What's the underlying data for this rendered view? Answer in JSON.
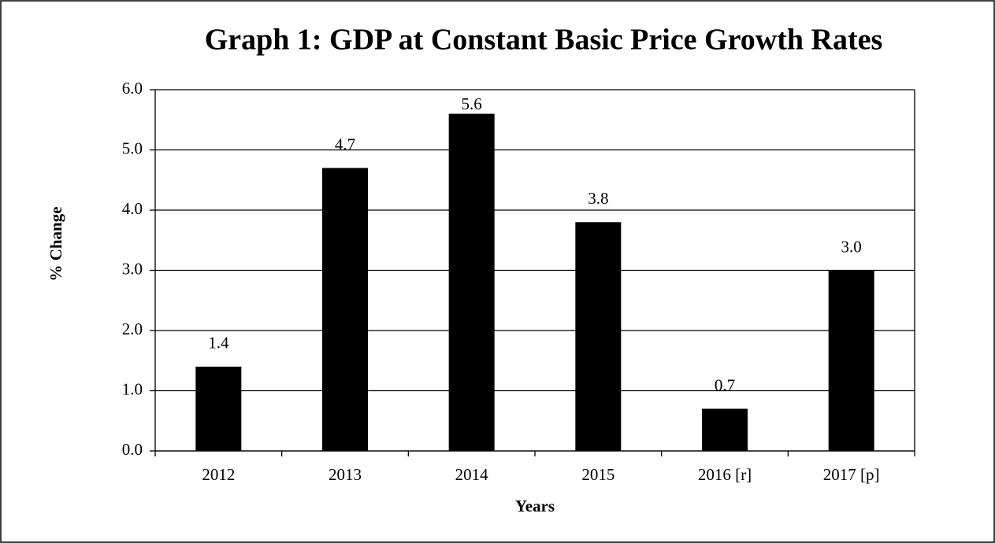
{
  "chart_data": {
    "type": "bar",
    "title": "Graph 1: GDP at Constant Basic Price Growth Rates",
    "x_label": "Years",
    "y_label": "% Change",
    "categories": [
      "2012",
      "2013",
      "2014",
      "2015",
      "2016 [r]",
      "2017 [p]"
    ],
    "values": [
      1.4,
      4.7,
      5.6,
      3.8,
      0.7,
      3.0
    ],
    "value_labels": [
      "1.4",
      "4.7",
      "5.6",
      "3.8",
      "0.7",
      "3.0"
    ],
    "color": "#000000",
    "ylim": [
      0,
      6
    ],
    "yticks": [
      {
        "value": 0,
        "label": "0.0"
      },
      {
        "value": 1,
        "label": "1.0"
      },
      {
        "value": 2,
        "label": "2.0"
      },
      {
        "value": 3,
        "label": "3.0"
      },
      {
        "value": 4,
        "label": "4.0"
      },
      {
        "value": 5,
        "label": "5.0"
      },
      {
        "value": 6,
        "label": "6.0"
      }
    ],
    "grid": true
  }
}
